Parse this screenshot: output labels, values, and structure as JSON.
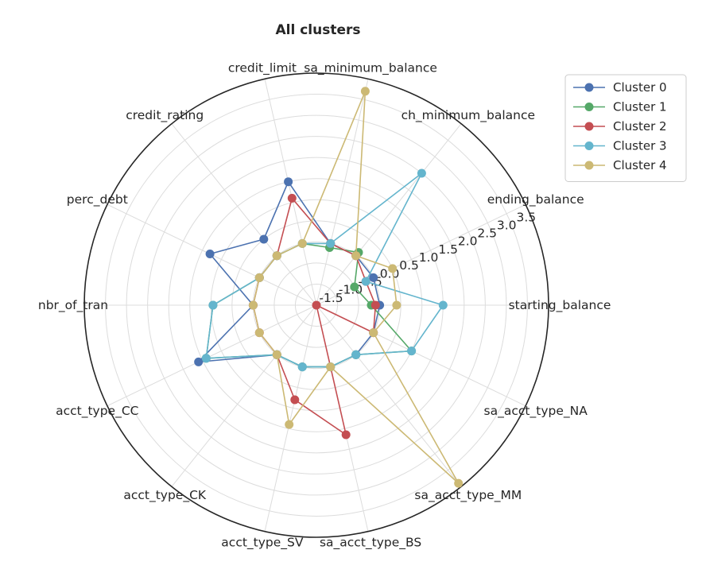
{
  "chart_data": {
    "type": "radar",
    "title": "All clusters",
    "axes": [
      "starting_balance",
      "ending_balance",
      "ch_minimum_balance",
      "sa_minimum_balance",
      "credit_limit",
      "credit_rating",
      "perc_debt",
      "nbr_of_tran",
      "acct_type_CC",
      "acct_type_CK",
      "acct_type_SV",
      "sa_acct_type_BS",
      "sa_acct_type_MM",
      "sa_acct_type_NA"
    ],
    "r_ticks": [
      "-1.5",
      "-1.0",
      "-0.5",
      "0.0",
      "0.5",
      "1.0",
      "1.5",
      "2.0",
      "2.5",
      "3.0",
      "3.5"
    ],
    "rlim": [
      -2.0,
      3.5
    ],
    "legend_position": "top-right",
    "series": [
      {
        "name": "Cluster 0",
        "color": "#4c72b0",
        "values": [
          -0.5,
          -0.5,
          -0.5,
          -0.5,
          1.0,
          0.0,
          0.8,
          -0.5,
          1.1,
          -0.5,
          -0.5,
          -0.5,
          -0.5,
          -0.5
        ]
      },
      {
        "name": "Cluster 1",
        "color": "#55a868",
        "values": [
          -0.7,
          -1.0,
          -0.4,
          -0.6,
          -0.5,
          -0.5,
          -0.5,
          0.45,
          0.9,
          -0.5,
          -0.5,
          -0.5,
          -0.5,
          0.5
        ]
      },
      {
        "name": "Cluster 2",
        "color": "#c44e52",
        "values": [
          -0.6,
          -0.7,
          -0.5,
          -0.5,
          0.6,
          -0.5,
          -0.5,
          -0.5,
          -0.5,
          -0.5,
          0.3,
          1.15,
          -2.0,
          -0.5
        ]
      },
      {
        "name": "Cluster 3",
        "color": "#64b5cd",
        "values": [
          1.0,
          -0.7,
          2.0,
          -0.5,
          -0.5,
          -0.5,
          -0.5,
          0.45,
          0.9,
          -0.5,
          -0.5,
          -0.5,
          -0.5,
          0.5
        ]
      },
      {
        "name": "Cluster 4",
        "color": "#ccb974",
        "values": [
          -0.1,
          0.0,
          -0.5,
          3.2,
          -0.5,
          -0.5,
          -0.5,
          -0.5,
          -0.5,
          -0.5,
          0.9,
          -0.5,
          3.4,
          -0.5
        ]
      }
    ]
  }
}
